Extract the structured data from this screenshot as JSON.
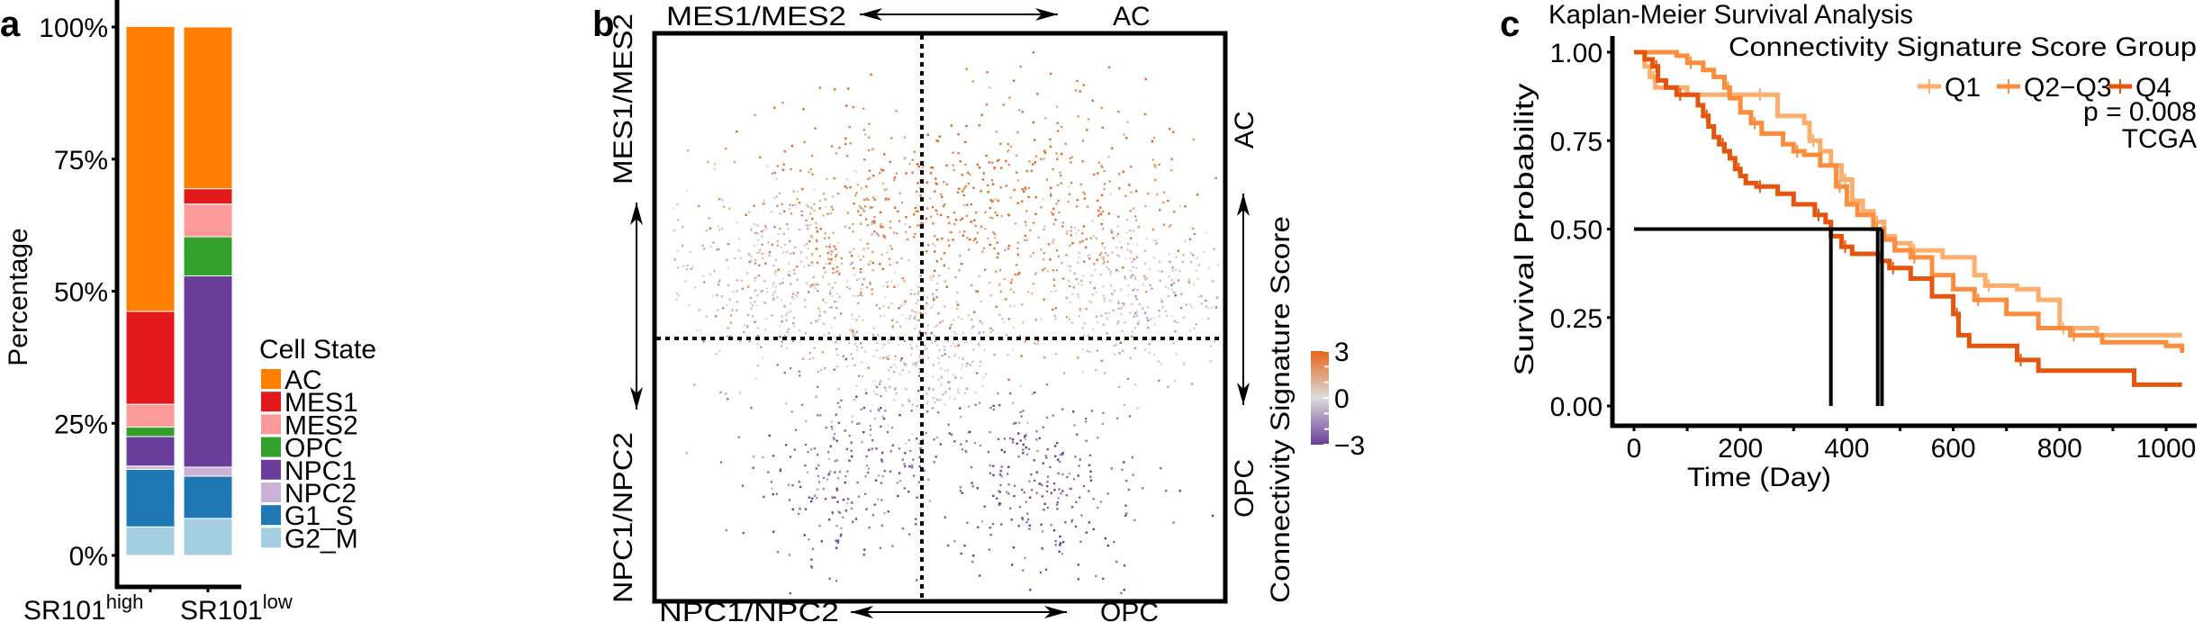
{
  "panel_labels": {
    "a": "a",
    "b": "b",
    "c": "c"
  },
  "chart_data": [
    {
      "id": "a",
      "type": "bar",
      "stacked": true,
      "ylabel": "Percentage",
      "ylim": [
        0,
        100
      ],
      "yticks": [
        "0%",
        "25%",
        "50%",
        "75%",
        "100%"
      ],
      "ytick_values": [
        0,
        25,
        50,
        75,
        100
      ],
      "categories": [
        {
          "base": "SR101",
          "sup": "high"
        },
        {
          "base": "SR101",
          "sup": "low"
        }
      ],
      "legend": {
        "title": "Cell State",
        "placement": "right"
      },
      "series": [
        {
          "name": "AC",
          "color": "#ff7f00",
          "values": [
            53.9,
            30.6
          ]
        },
        {
          "name": "MES1",
          "color": "#e31a1c",
          "values": [
            17.6,
            2.9
          ]
        },
        {
          "name": "MES2",
          "color": "#fb9a99",
          "values": [
            4.3,
            6.2
          ]
        },
        {
          "name": "OPC",
          "color": "#33a02c",
          "values": [
            1.8,
            7.4
          ]
        },
        {
          "name": "NPC1",
          "color": "#6a3d9a",
          "values": [
            5.6,
            36.2
          ]
        },
        {
          "name": "NPC2",
          "color": "#cab2d6",
          "values": [
            0.6,
            1.7
          ]
        },
        {
          "name": "G1_S",
          "color": "#1f78b4",
          "values": [
            10.9,
            8.0
          ]
        },
        {
          "name": "G2_M",
          "color": "#a6cee3",
          "values": [
            5.4,
            7.0
          ]
        }
      ]
    },
    {
      "id": "b",
      "type": "scatter",
      "quadrant_labels": {
        "top_left": "MES1/MES2",
        "top_right": "AC",
        "bottom_left": "NPC1/NPC2",
        "bottom_right": "OPC",
        "left_top": "MES1/MES2",
        "left_bottom": "NPC1/NPC2",
        "right_top": "AC",
        "right_bottom": "OPC"
      },
      "xlim": [
        -1,
        1
      ],
      "ylim": [
        -1,
        1
      ],
      "colorbar": {
        "title": "Connectivity Signature Score",
        "ticks": [
          "3",
          "0",
          "−3"
        ],
        "tick_values": [
          3,
          0,
          -3
        ],
        "range": [
          -3,
          3
        ],
        "colors": {
          "high": "#e8641a",
          "mid": "#dcdcdc",
          "low": "#6a3d9a"
        }
      },
      "density_note_clusters": [
        {
          "x": 0.05,
          "y": 0.45,
          "score": 2.6,
          "spread": 0.28
        },
        {
          "x": -0.35,
          "y": 0.3,
          "score": 1.6,
          "spread": 0.22
        },
        {
          "x": 0.4,
          "y": 0.35,
          "score": 2.0,
          "spread": 0.24
        },
        {
          "x": -0.6,
          "y": 0.15,
          "score": -0.6,
          "spread": 0.18
        },
        {
          "x": 0.7,
          "y": 0.1,
          "score": -0.4,
          "spread": 0.16
        },
        {
          "x": -0.05,
          "y": -0.1,
          "score": 0.2,
          "spread": 0.15
        },
        {
          "x": -0.3,
          "y": -0.55,
          "score": -1.8,
          "spread": 0.2
        },
        {
          "x": 0.3,
          "y": -0.6,
          "score": -2.2,
          "spread": 0.2
        }
      ]
    },
    {
      "id": "c",
      "type": "line",
      "title": "Kaplan-Meier Survival Analysis",
      "xlabel": "Time (Day)",
      "ylabel": "Survival Probability",
      "xlim": [
        -30,
        1030
      ],
      "ylim": [
        0,
        1
      ],
      "xticks": [
        "0",
        "200",
        "400",
        "600",
        "800",
        "1000"
      ],
      "xtick_values": [
        0,
        200,
        400,
        600,
        800,
        1000
      ],
      "yticks": [
        "0.00",
        "0.25",
        "0.50",
        "0.75",
        "1.00"
      ],
      "ytick_values": [
        0,
        0.25,
        0.5,
        0.75,
        1.0
      ],
      "legend": {
        "title": "Connectivity Signature Score Group",
        "placement": "top-right",
        "p_value": "p = 0.008",
        "dataset": "TCGA"
      },
      "median_survival": [
        {
          "group": "Q4",
          "day": 370
        },
        {
          "group": "Q2−Q3",
          "day": 458
        },
        {
          "group": "Q1",
          "day": 466
        }
      ],
      "series": [
        {
          "name": "Q1",
          "color": "#fdae6b",
          "x": [
            0,
            20,
            30,
            40,
            100,
            230,
            270,
            320,
            330,
            350,
            370,
            390,
            410,
            430,
            450,
            470,
            490,
            520,
            580,
            640,
            660,
            720,
            760,
            800,
            870,
            1030
          ],
          "y": [
            1.0,
            0.96,
            0.93,
            0.9,
            0.88,
            0.88,
            0.82,
            0.8,
            0.75,
            0.72,
            0.68,
            0.64,
            0.58,
            0.55,
            0.52,
            0.48,
            0.46,
            0.44,
            0.42,
            0.37,
            0.34,
            0.33,
            0.3,
            0.22,
            0.2,
            0.2
          ]
        },
        {
          "name": "Q2−Q3",
          "color": "#fd8d3c",
          "x": [
            0,
            80,
            100,
            130,
            150,
            170,
            180,
            200,
            220,
            240,
            280,
            300,
            320,
            350,
            380,
            400,
            420,
            450,
            470,
            490,
            520,
            560,
            600,
            640,
            700,
            760,
            820,
            880,
            1000,
            1030
          ],
          "y": [
            1.0,
            0.99,
            0.97,
            0.95,
            0.93,
            0.9,
            0.87,
            0.83,
            0.8,
            0.77,
            0.74,
            0.72,
            0.71,
            0.68,
            0.62,
            0.57,
            0.54,
            0.5,
            0.47,
            0.44,
            0.42,
            0.37,
            0.33,
            0.3,
            0.26,
            0.22,
            0.2,
            0.18,
            0.17,
            0.15
          ]
        },
        {
          "name": "Q4",
          "color": "#e6550d",
          "x": [
            0,
            20,
            35,
            45,
            60,
            80,
            110,
            120,
            130,
            140,
            150,
            160,
            170,
            180,
            190,
            200,
            210,
            230,
            270,
            300,
            340,
            360,
            370,
            390,
            410,
            460,
            480,
            520,
            560,
            600,
            610,
            630,
            720,
            760,
            940,
            1030
          ],
          "y": [
            1.0,
            0.98,
            0.96,
            0.92,
            0.9,
            0.88,
            0.88,
            0.85,
            0.82,
            0.79,
            0.76,
            0.74,
            0.72,
            0.7,
            0.67,
            0.65,
            0.63,
            0.62,
            0.6,
            0.57,
            0.54,
            0.52,
            0.48,
            0.45,
            0.43,
            0.41,
            0.39,
            0.36,
            0.31,
            0.26,
            0.2,
            0.17,
            0.13,
            0.1,
            0.06,
            0.06
          ]
        }
      ]
    }
  ]
}
